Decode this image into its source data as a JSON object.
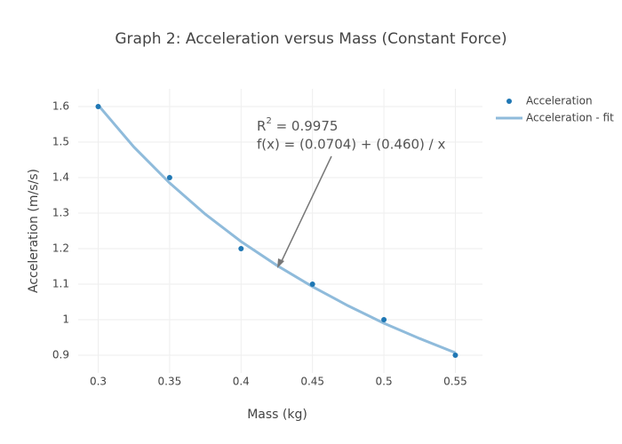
{
  "chart_data": {
    "type": "scatter",
    "title": "Graph 2: Acceleration versus Mass (Constant Force)",
    "x_label": "Mass (kg)",
    "y_label": "Acceleration (m/s/s)",
    "annotation": {
      "base": "R",
      "superscript": "2",
      "rest": " = 0.9975",
      "formula": "f(x) = (0.0704) + (0.460) / x"
    },
    "xlim": [
      0.286,
      0.569
    ],
    "ylim": [
      0.85,
      1.65
    ],
    "xticks": [
      0.3,
      0.35,
      0.4,
      0.45,
      0.5,
      0.55
    ],
    "yticks": [
      0.9,
      1,
      1.1,
      1.2,
      1.3,
      1.4,
      1.5,
      1.6
    ],
    "grid": true,
    "series": [
      {
        "name": "Acceleration",
        "mode": "markers",
        "color": "#1f77b4",
        "x": [
          0.3,
          0.35,
          0.4,
          0.45,
          0.5,
          0.55
        ],
        "values": [
          1.6,
          1.4,
          1.2,
          1.1,
          1.0,
          0.9
        ]
      },
      {
        "name": "Acceleration - fit",
        "mode": "line",
        "color": "#8fbbdb",
        "x": [
          0.3,
          0.325,
          0.35,
          0.375,
          0.4,
          0.425,
          0.45,
          0.475,
          0.5,
          0.525,
          0.55
        ],
        "values": [
          1.604,
          1.486,
          1.385,
          1.297,
          1.22,
          1.153,
          1.093,
          1.039,
          0.99,
          0.947,
          0.907
        ]
      }
    ]
  }
}
